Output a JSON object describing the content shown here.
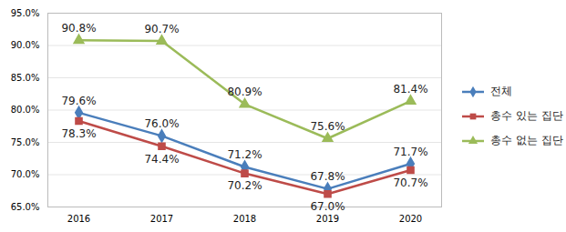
{
  "chart_data": {
    "type": "line",
    "categories": [
      "2016",
      "2017",
      "2018",
      "2019",
      "2020"
    ],
    "series": [
      {
        "name": "전체",
        "color": "#4a7ebb",
        "marker": "diamond",
        "values": [
          79.6,
          76.0,
          71.2,
          67.8,
          71.7
        ],
        "value_labels": [
          "79.6%",
          "76.0%",
          "71.2%",
          "67.8%",
          "71.7%"
        ]
      },
      {
        "name": "총수 있는 집단",
        "color": "#be4b48",
        "marker": "square",
        "values": [
          78.3,
          74.4,
          70.2,
          67.0,
          70.7
        ],
        "value_labels": [
          "78.3%",
          "74.4%",
          "70.2%",
          "67.0%",
          "70.7%"
        ]
      },
      {
        "name": "총수 없는 집단",
        "color": "#9bbb59",
        "marker": "triangle",
        "values": [
          90.8,
          90.7,
          80.9,
          75.6,
          81.4
        ],
        "value_labels": [
          "90.8%",
          "90.7%",
          "80.9%",
          "75.6%",
          "81.4%"
        ]
      }
    ],
    "ylim": [
      65,
      95
    ],
    "yticks": [
      {
        "value": 65,
        "label": "65.0%"
      },
      {
        "value": 70,
        "label": "70.0%"
      },
      {
        "value": 75,
        "label": "75.0%"
      },
      {
        "value": 80,
        "label": "80.0%"
      },
      {
        "value": 85,
        "label": "85.0%"
      },
      {
        "value": 90,
        "label": "90.0%"
      },
      {
        "value": 95,
        "label": "95.0%"
      }
    ],
    "grid": true,
    "data_labels": true,
    "legend": "right"
  }
}
